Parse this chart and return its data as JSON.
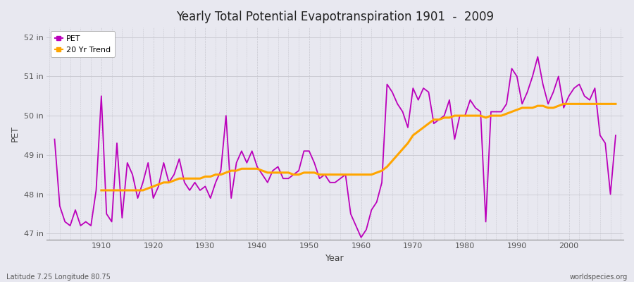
{
  "title": "Yearly Total Potential Evapotranspiration 1901  -  2009",
  "xlabel": "Year",
  "ylabel": "PET",
  "bottom_left": "Latitude 7.25 Longitude 80.75",
  "bottom_right": "worldspecies.org",
  "pet_color": "#bb00bb",
  "trend_color": "#ffa500",
  "bg_color": "#e8e8f0",
  "plot_bg_color": "#e8e8f0",
  "years": [
    1901,
    1902,
    1903,
    1904,
    1905,
    1906,
    1907,
    1908,
    1909,
    1910,
    1911,
    1912,
    1913,
    1914,
    1915,
    1916,
    1917,
    1918,
    1919,
    1920,
    1921,
    1922,
    1923,
    1924,
    1925,
    1926,
    1927,
    1928,
    1929,
    1930,
    1931,
    1932,
    1933,
    1934,
    1935,
    1936,
    1937,
    1938,
    1939,
    1940,
    1941,
    1942,
    1943,
    1944,
    1945,
    1946,
    1947,
    1948,
    1949,
    1950,
    1951,
    1952,
    1953,
    1954,
    1955,
    1956,
    1957,
    1958,
    1959,
    1960,
    1961,
    1962,
    1963,
    1964,
    1965,
    1966,
    1967,
    1968,
    1969,
    1970,
    1971,
    1972,
    1973,
    1974,
    1975,
    1976,
    1977,
    1978,
    1979,
    1980,
    1981,
    1982,
    1983,
    1984,
    1985,
    1986,
    1987,
    1988,
    1989,
    1990,
    1991,
    1992,
    1993,
    1994,
    1995,
    1996,
    1997,
    1998,
    1999,
    2000,
    2001,
    2002,
    2003,
    2004,
    2005,
    2006,
    2007,
    2008,
    2009
  ],
  "pet_values": [
    49.4,
    47.7,
    47.3,
    47.2,
    47.6,
    47.2,
    47.3,
    47.2,
    48.1,
    50.5,
    47.5,
    47.3,
    49.3,
    47.4,
    48.8,
    48.5,
    47.9,
    48.3,
    48.8,
    47.9,
    48.2,
    48.8,
    48.3,
    48.5,
    48.9,
    48.3,
    48.1,
    48.3,
    48.1,
    48.2,
    47.9,
    48.3,
    48.6,
    50.0,
    47.9,
    48.8,
    49.1,
    48.8,
    49.1,
    48.7,
    48.5,
    48.3,
    48.6,
    48.7,
    48.4,
    48.4,
    48.5,
    48.6,
    49.1,
    49.1,
    48.8,
    48.4,
    48.5,
    48.3,
    48.3,
    48.4,
    48.5,
    47.5,
    47.2,
    46.9,
    47.1,
    47.6,
    47.8,
    48.3,
    50.8,
    50.6,
    50.3,
    50.1,
    49.7,
    50.7,
    50.4,
    50.7,
    50.6,
    49.8,
    49.9,
    50.0,
    50.4,
    49.4,
    50.0,
    50.0,
    50.4,
    50.2,
    50.1,
    47.3,
    50.1,
    50.1,
    50.1,
    50.3,
    51.2,
    51.0,
    50.3,
    50.6,
    51.0,
    51.5,
    50.8,
    50.3,
    50.6,
    51.0,
    50.2,
    50.5,
    50.7,
    50.8,
    50.5,
    50.4,
    50.7,
    49.5,
    49.3,
    48.0,
    49.5
  ],
  "trend_values": [
    null,
    null,
    null,
    null,
    null,
    null,
    null,
    null,
    null,
    48.1,
    48.1,
    48.1,
    48.1,
    48.1,
    48.1,
    48.1,
    48.1,
    48.1,
    48.15,
    48.2,
    48.25,
    48.3,
    48.3,
    48.35,
    48.4,
    48.4,
    48.4,
    48.4,
    48.4,
    48.45,
    48.45,
    48.5,
    48.5,
    48.55,
    48.6,
    48.6,
    48.65,
    48.65,
    48.65,
    48.65,
    48.6,
    48.55,
    48.55,
    48.55,
    48.55,
    48.55,
    48.5,
    48.5,
    48.55,
    48.55,
    48.55,
    48.5,
    48.5,
    48.5,
    48.5,
    48.5,
    48.5,
    48.5,
    48.5,
    48.5,
    48.5,
    48.5,
    48.55,
    48.6,
    48.7,
    48.85,
    49.0,
    49.15,
    49.3,
    49.5,
    49.6,
    49.7,
    49.8,
    49.9,
    49.9,
    49.95,
    49.95,
    50.0,
    50.0,
    50.0,
    50.0,
    50.0,
    50.0,
    49.95,
    50.0,
    50.0,
    50.0,
    50.05,
    50.1,
    50.15,
    50.2,
    50.2,
    50.2,
    50.25,
    50.25,
    50.2,
    50.2,
    50.25,
    50.3,
    50.3,
    50.3,
    50.3,
    50.3,
    50.3,
    50.3,
    50.3,
    50.3,
    50.3,
    50.3
  ],
  "ylim": [
    46.85,
    52.25
  ],
  "yticks": [
    47,
    48,
    49,
    50,
    51,
    52
  ],
  "ytick_labels": [
    "47 in",
    "48 in",
    "49 in",
    "50 in",
    "51 in",
    "52 in"
  ],
  "xlim": [
    1899.5,
    2010.5
  ],
  "xticks": [
    1910,
    1920,
    1930,
    1940,
    1950,
    1960,
    1970,
    1980,
    1990,
    2000
  ]
}
